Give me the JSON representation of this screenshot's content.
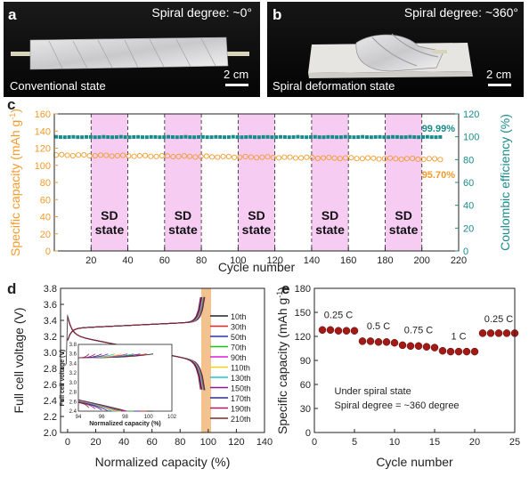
{
  "panel_a": {
    "letter": "a",
    "spiral_degree": "Spiral degree: ~0°",
    "scale": "2 cm",
    "state": "Conventional state"
  },
  "panel_b": {
    "letter": "b",
    "spiral_degree": "Spiral degree: ~360°",
    "scale": "2 cm",
    "state": "Spiral deformation state"
  },
  "chart_data": [
    {
      "panel": "c",
      "type": "scatter",
      "xlabel": "Cycle number",
      "ylabel_left": "Specific capacity (mAh g⁻¹)",
      "ylabel_right": "Coulombic efficiency (%)",
      "xlim": [
        0,
        220
      ],
      "ylim_left": [
        0,
        160
      ],
      "ylim_right": [
        0,
        120
      ],
      "xticks": [
        20,
        40,
        60,
        80,
        100,
        120,
        140,
        160,
        180,
        200,
        220
      ],
      "yticks_left": [
        0,
        20,
        40,
        60,
        80,
        100,
        120,
        140,
        160
      ],
      "yticks_right": [
        0,
        20,
        40,
        60,
        80,
        100,
        120
      ],
      "colors": {
        "capacity": "#f39a2b",
        "efficiency": "#1b8a8a",
        "shade": "#f6ccf3"
      },
      "sd_regions": [
        [
          20,
          40
        ],
        [
          60,
          80
        ],
        [
          100,
          120
        ],
        [
          140,
          160
        ],
        [
          180,
          200
        ]
      ],
      "sd_label": [
        "SD",
        "state"
      ],
      "series": [
        {
          "axis": "left",
          "x_start": 1,
          "x_end": 210,
          "y_start": 112,
          "y_end": 107.2
        },
        {
          "axis": "right",
          "x_start": 1,
          "x_end": 210,
          "y_start": 99.99,
          "y_end": 99.99
        }
      ],
      "annotations": [
        "99.99%",
        "95.70%"
      ]
    },
    {
      "panel": "d",
      "type": "line",
      "xlabel": "Normalized capacity (%)",
      "ylabel": "Full cell voltage (V)",
      "xlim": [
        -5,
        140
      ],
      "ylim": [
        2.0,
        3.8
      ],
      "xticks": [
        0,
        20,
        40,
        60,
        80,
        100,
        120,
        140
      ],
      "yticks": [
        2.0,
        2.2,
        2.4,
        2.6,
        2.8,
        3.0,
        3.2,
        3.4,
        3.6,
        3.8
      ],
      "band": [
        95,
        102
      ],
      "band_color": "#f3c28f",
      "legend": [
        "10th",
        "30th",
        "50th",
        "70th",
        "90th",
        "110th",
        "130th",
        "150th",
        "170th",
        "190th",
        "210th"
      ],
      "series_colors": [
        "#222222",
        "#e8221c",
        "#1e2fe0",
        "#18c418",
        "#e01bd2",
        "#f0d21a",
        "#1dc7d4",
        "#8a1a86",
        "#2d2b8a",
        "#b5176f",
        "#7a2a2a"
      ],
      "inset": {
        "xlabel": "Normalized capacity (%)",
        "ylabel": "Full cell voltage (V)",
        "xlim": [
          94,
          102
        ],
        "ylim": [
          2.4,
          3.8
        ],
        "xticks": [
          94,
          96,
          98,
          100,
          102
        ],
        "yticks": [
          2.4,
          2.6,
          2.8,
          3.0,
          3.2,
          3.4,
          3.6,
          3.8
        ]
      }
    },
    {
      "panel": "e",
      "type": "scatter",
      "xlabel": "Cycle number",
      "ylabel": "Specific capacity (mAh g⁻¹)",
      "xlim": [
        0,
        25
      ],
      "ylim": [
        0,
        180
      ],
      "xticks": [
        0,
        5,
        10,
        15,
        20,
        25
      ],
      "yticks": [
        0,
        30,
        60,
        90,
        120,
        150,
        180
      ],
      "color": "#a11a16",
      "x": [
        1,
        2,
        3,
        4,
        5,
        6,
        7,
        8,
        9,
        10,
        11,
        12,
        13,
        14,
        15,
        16,
        17,
        18,
        19,
        20,
        21,
        22,
        23,
        24,
        25
      ],
      "values": [
        128,
        128,
        127,
        127,
        127,
        114,
        114,
        113,
        113,
        112,
        109,
        108,
        108,
        107,
        106,
        102,
        101,
        101,
        101,
        101,
        124,
        124,
        124,
        124,
        124
      ],
      "rate_labels": [
        {
          "x": 3,
          "y": 143,
          "text": "0.25 C"
        },
        {
          "x": 8,
          "y": 129,
          "text": "0.5 C"
        },
        {
          "x": 13,
          "y": 124,
          "text": "0.75 C"
        },
        {
          "x": 18,
          "y": 116,
          "text": "1 C"
        },
        {
          "x": 23,
          "y": 138,
          "text": "0.25 C"
        }
      ],
      "notes": [
        "Under spiral state",
        "Spiral degree = ~360 degree"
      ]
    }
  ]
}
